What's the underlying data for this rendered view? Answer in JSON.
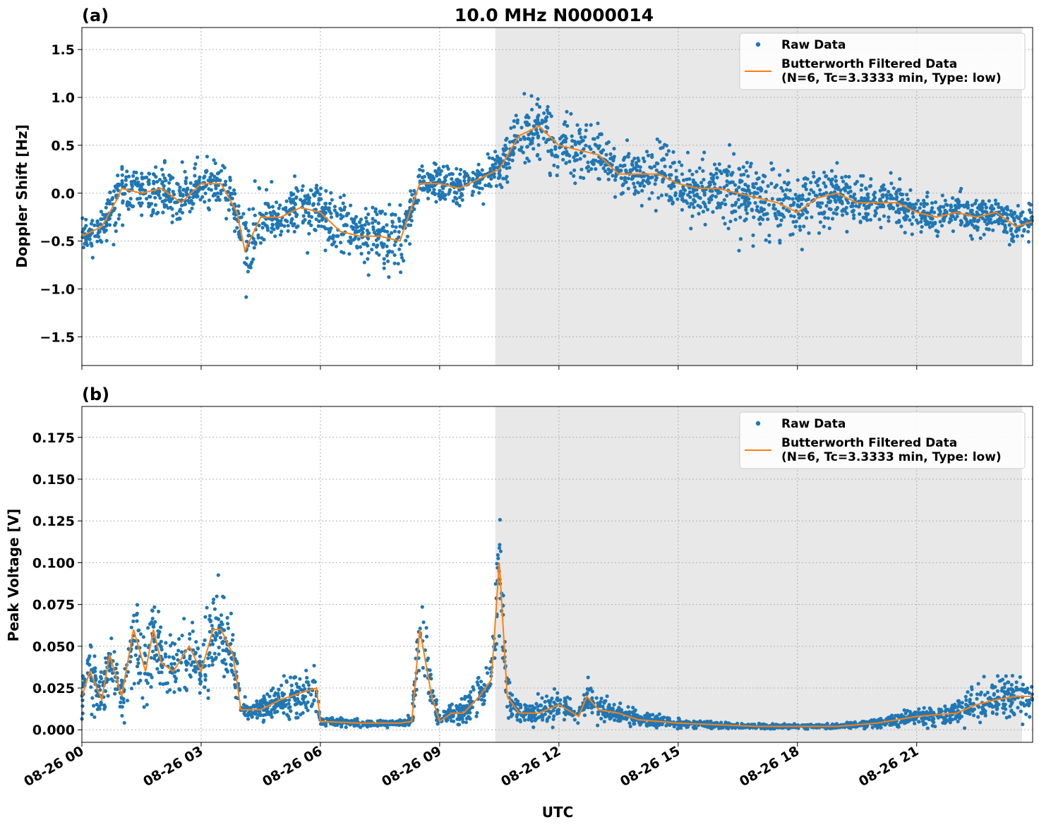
{
  "figure": {
    "title": "10.0 MHz N0000014",
    "xlabel": "UTC",
    "colors": {
      "raw": "#1f77b4",
      "filtered": "#ff7f0e",
      "shade": "#e8e8e8",
      "grid": "#b0b0b0"
    }
  },
  "chart_data": [
    {
      "type": "scatter",
      "panel_label": "(a)",
      "ylabel": "Doppler Shift [Hz]",
      "xlim": [
        "2024-08-26T00:00",
        "2024-08-26T23:55"
      ],
      "ylim": [
        -1.8,
        1.73
      ],
      "yticks": [
        -1.5,
        -1.0,
        -0.5,
        0.0,
        0.5,
        1.0,
        1.5
      ],
      "ytick_labels": [
        "−1.5",
        "−1.0",
        "−0.5",
        "0.0",
        "0.5",
        "1.0",
        "1.5"
      ],
      "grid": true,
      "shaded_span_hours": [
        10.4,
        23.65
      ],
      "legend": {
        "position": "top-right",
        "entries": [
          "Raw Data",
          "Butterworth Filtered Data",
          "(N=6, Tc=3.3333 min, Type: low)"
        ]
      },
      "series": [
        {
          "name": "Raw Data",
          "kind": "scatter",
          "x_hours": [
            0,
            0.5,
            0.9,
            1.0,
            1.5,
            2.0,
            2.5,
            3.0,
            3.5,
            3.9,
            4.1,
            4.5,
            5.0,
            5.5,
            6.0,
            6.5,
            7.0,
            7.5,
            8.0,
            8.5,
            9.0,
            9.5,
            10.0,
            10.5,
            11.0,
            11.5,
            12.0,
            12.5,
            13.0,
            13.5,
            14.0,
            14.5,
            15.0,
            15.5,
            16.0,
            16.5,
            17.0,
            17.5,
            18.0,
            18.5,
            19.0,
            19.5,
            20.0,
            20.5,
            21.0,
            21.5,
            22.0,
            22.5,
            23.0,
            23.5,
            23.9
          ],
          "center_hz": [
            -0.45,
            -0.35,
            -0.05,
            0.05,
            0.0,
            0.05,
            -0.1,
            0.1,
            0.1,
            -0.2,
            -0.6,
            -0.25,
            -0.25,
            -0.15,
            -0.2,
            -0.4,
            -0.45,
            -0.45,
            -0.5,
            0.1,
            0.1,
            0.05,
            0.15,
            0.25,
            0.6,
            0.7,
            0.5,
            0.45,
            0.4,
            0.2,
            0.2,
            0.2,
            0.1,
            0.05,
            0.05,
            0.0,
            -0.05,
            -0.1,
            -0.2,
            -0.05,
            0.0,
            -0.1,
            -0.1,
            -0.1,
            -0.2,
            -0.25,
            -0.2,
            -0.25,
            -0.2,
            -0.35,
            -0.3
          ],
          "spread_hz": [
            0.15,
            0.2,
            0.3,
            0.3,
            0.3,
            0.3,
            0.3,
            0.3,
            0.3,
            0.35,
            0.45,
            0.3,
            0.3,
            0.3,
            0.3,
            0.35,
            0.4,
            0.35,
            0.4,
            0.2,
            0.2,
            0.2,
            0.2,
            0.25,
            0.35,
            0.35,
            0.35,
            0.3,
            0.3,
            0.25,
            0.25,
            0.3,
            0.3,
            0.35,
            0.35,
            0.4,
            0.4,
            0.4,
            0.4,
            0.35,
            0.3,
            0.3,
            0.25,
            0.25,
            0.2,
            0.2,
            0.2,
            0.2,
            0.2,
            0.25,
            0.2
          ]
        },
        {
          "name": "Butterworth Filtered Data",
          "kind": "line",
          "x_hours": [
            0,
            0.5,
            0.9,
            1.0,
            1.5,
            2.0,
            2.5,
            3.0,
            3.5,
            3.9,
            4.1,
            4.5,
            5.0,
            5.5,
            6.0,
            6.5,
            7.0,
            7.5,
            8.0,
            8.5,
            9.0,
            9.5,
            10.0,
            10.5,
            11.0,
            11.5,
            12.0,
            12.5,
            13.0,
            13.5,
            14.0,
            14.5,
            15.0,
            15.5,
            16.0,
            16.5,
            17.0,
            17.5,
            18.0,
            18.5,
            19.0,
            19.5,
            20.0,
            20.5,
            21.0,
            21.5,
            22.0,
            22.5,
            23.0,
            23.5,
            23.9
          ],
          "y_hz": [
            -0.45,
            -0.35,
            -0.05,
            0.05,
            0.0,
            0.05,
            -0.1,
            0.1,
            0.1,
            -0.2,
            -0.6,
            -0.25,
            -0.25,
            -0.15,
            -0.2,
            -0.4,
            -0.45,
            -0.45,
            -0.5,
            0.1,
            0.1,
            0.05,
            0.15,
            0.25,
            0.6,
            0.7,
            0.5,
            0.45,
            0.4,
            0.2,
            0.2,
            0.2,
            0.1,
            0.05,
            0.05,
            0.0,
            -0.05,
            -0.1,
            -0.2,
            -0.05,
            0.0,
            -0.1,
            -0.1,
            -0.1,
            -0.2,
            -0.25,
            -0.2,
            -0.25,
            -0.2,
            -0.35,
            -0.3
          ]
        }
      ]
    },
    {
      "type": "scatter",
      "panel_label": "(b)",
      "ylabel": "Peak Voltage [V]",
      "xlim": [
        "2024-08-26T00:00",
        "2024-08-26T23:55"
      ],
      "ylim": [
        -0.0075,
        0.1935
      ],
      "yticks": [
        0.0,
        0.025,
        0.05,
        0.075,
        0.1,
        0.125,
        0.15,
        0.175
      ],
      "ytick_labels": [
        "0.000",
        "0.025",
        "0.050",
        "0.075",
        "0.100",
        "0.125",
        "0.150",
        "0.175"
      ],
      "grid": true,
      "shaded_span_hours": [
        10.4,
        23.65
      ],
      "legend": {
        "position": "top-right",
        "entries": [
          "Raw Data",
          "Butterworth Filtered Data",
          "(N=6, Tc=3.3333 min, Type: low)"
        ]
      },
      "series": [
        {
          "name": "Raw Data",
          "kind": "scatter",
          "x_hours": [
            0,
            0.2,
            0.5,
            0.7,
            1.0,
            1.3,
            1.6,
            1.8,
            2.0,
            2.3,
            2.7,
            3.0,
            3.3,
            3.5,
            3.8,
            4.0,
            4.5,
            5.0,
            5.5,
            5.9,
            6.0,
            7.0,
            8.0,
            8.3,
            8.5,
            8.8,
            9.0,
            9.3,
            9.6,
            10.0,
            10.3,
            10.5,
            10.7,
            11.0,
            11.5,
            12.0,
            12.5,
            12.7,
            13.0,
            13.5,
            14.0,
            15.0,
            16.0,
            17.0,
            18.0,
            19.0,
            20.0,
            21.0,
            22.0,
            22.5,
            23.0,
            23.5,
            23.9
          ],
          "center_v": [
            0.02,
            0.035,
            0.018,
            0.045,
            0.02,
            0.06,
            0.035,
            0.06,
            0.04,
            0.035,
            0.05,
            0.035,
            0.06,
            0.06,
            0.045,
            0.012,
            0.012,
            0.018,
            0.022,
            0.025,
            0.005,
            0.004,
            0.004,
            0.005,
            0.06,
            0.02,
            0.005,
            0.01,
            0.01,
            0.02,
            0.03,
            0.1,
            0.02,
            0.01,
            0.01,
            0.015,
            0.008,
            0.02,
            0.012,
            0.01,
            0.006,
            0.004,
            0.003,
            0.002,
            0.002,
            0.002,
            0.004,
            0.008,
            0.01,
            0.015,
            0.018,
            0.02,
            0.02
          ],
          "spread_v": [
            0.012,
            0.025,
            0.012,
            0.02,
            0.015,
            0.03,
            0.025,
            0.03,
            0.02,
            0.025,
            0.025,
            0.02,
            0.03,
            0.03,
            0.02,
            0.006,
            0.008,
            0.012,
            0.015,
            0.015,
            0.003,
            0.002,
            0.002,
            0.003,
            0.03,
            0.015,
            0.003,
            0.006,
            0.008,
            0.012,
            0.015,
            0.04,
            0.015,
            0.008,
            0.008,
            0.01,
            0.005,
            0.012,
            0.008,
            0.006,
            0.004,
            0.003,
            0.002,
            0.0015,
            0.0015,
            0.0015,
            0.003,
            0.005,
            0.008,
            0.012,
            0.014,
            0.015,
            0.015
          ]
        },
        {
          "name": "Butterworth Filtered Data",
          "kind": "line",
          "x_hours": [
            0,
            0.2,
            0.5,
            0.7,
            1.0,
            1.3,
            1.6,
            1.8,
            2.0,
            2.3,
            2.7,
            3.0,
            3.3,
            3.5,
            3.8,
            4.0,
            4.5,
            5.0,
            5.5,
            5.9,
            6.0,
            7.0,
            8.0,
            8.3,
            8.5,
            8.8,
            9.0,
            9.3,
            9.6,
            10.0,
            10.3,
            10.5,
            10.7,
            11.0,
            11.5,
            12.0,
            12.5,
            12.7,
            13.0,
            13.5,
            14.0,
            15.0,
            16.0,
            17.0,
            18.0,
            19.0,
            20.0,
            21.0,
            22.0,
            22.5,
            23.0,
            23.5,
            23.9
          ],
          "y_v": [
            0.02,
            0.035,
            0.018,
            0.045,
            0.02,
            0.06,
            0.035,
            0.06,
            0.04,
            0.035,
            0.05,
            0.035,
            0.06,
            0.06,
            0.045,
            0.012,
            0.012,
            0.018,
            0.022,
            0.025,
            0.005,
            0.004,
            0.004,
            0.005,
            0.06,
            0.02,
            0.005,
            0.01,
            0.01,
            0.02,
            0.03,
            0.1,
            0.02,
            0.01,
            0.01,
            0.015,
            0.008,
            0.02,
            0.012,
            0.01,
            0.006,
            0.004,
            0.003,
            0.002,
            0.002,
            0.002,
            0.004,
            0.008,
            0.01,
            0.015,
            0.018,
            0.02,
            0.02
          ]
        }
      ]
    }
  ],
  "xaxis": {
    "ticks_hours": [
      0,
      3,
      6,
      9,
      12,
      15,
      18,
      21
    ],
    "tick_labels": [
      "08-26 00",
      "08-26 03",
      "08-26 06",
      "08-26 09",
      "08-26 12",
      "08-26 15",
      "08-26 18",
      "08-26 21"
    ]
  }
}
